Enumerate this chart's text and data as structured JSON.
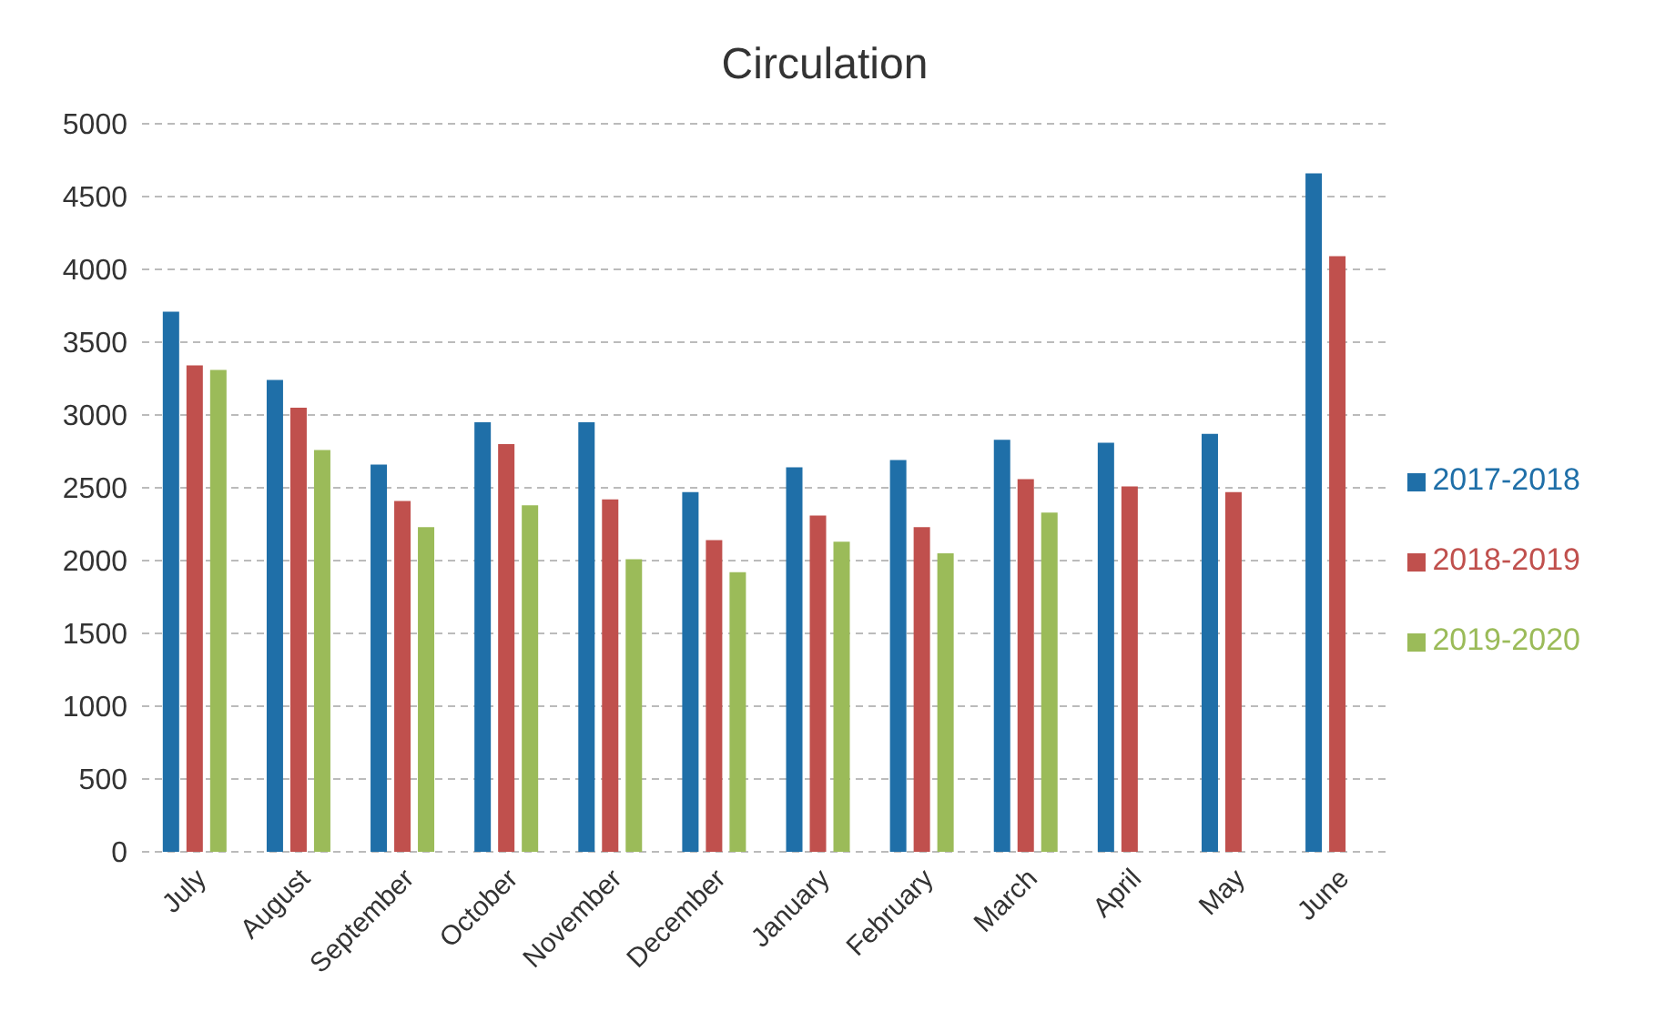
{
  "chart_data": {
    "type": "bar",
    "title": "Circulation",
    "categories": [
      "July",
      "August",
      "September",
      "October",
      "November",
      "December",
      "January",
      "February",
      "March",
      "April",
      "May",
      "June"
    ],
    "series": [
      {
        "name": "2017-2018",
        "color": "#1f6fa8",
        "values": [
          3710,
          3240,
          2660,
          2950,
          2950,
          2470,
          2640,
          2690,
          2830,
          2810,
          2870,
          4660
        ]
      },
      {
        "name": "2018-2019",
        "color": "#c0504d",
        "values": [
          3340,
          3050,
          2410,
          2800,
          2420,
          2140,
          2310,
          2230,
          2560,
          2510,
          2470,
          4090
        ]
      },
      {
        "name": "2019-2020",
        "color": "#9bbb59",
        "values": [
          3310,
          2760,
          2230,
          2380,
          2010,
          1920,
          2130,
          2050,
          2330,
          null,
          null,
          null
        ]
      }
    ],
    "ylim": [
      0,
      5000
    ],
    "yticks": [
      0,
      500,
      1000,
      1500,
      2000,
      2500,
      3000,
      3500,
      4000,
      4500,
      5000
    ],
    "grid": "y",
    "legend": "right"
  }
}
